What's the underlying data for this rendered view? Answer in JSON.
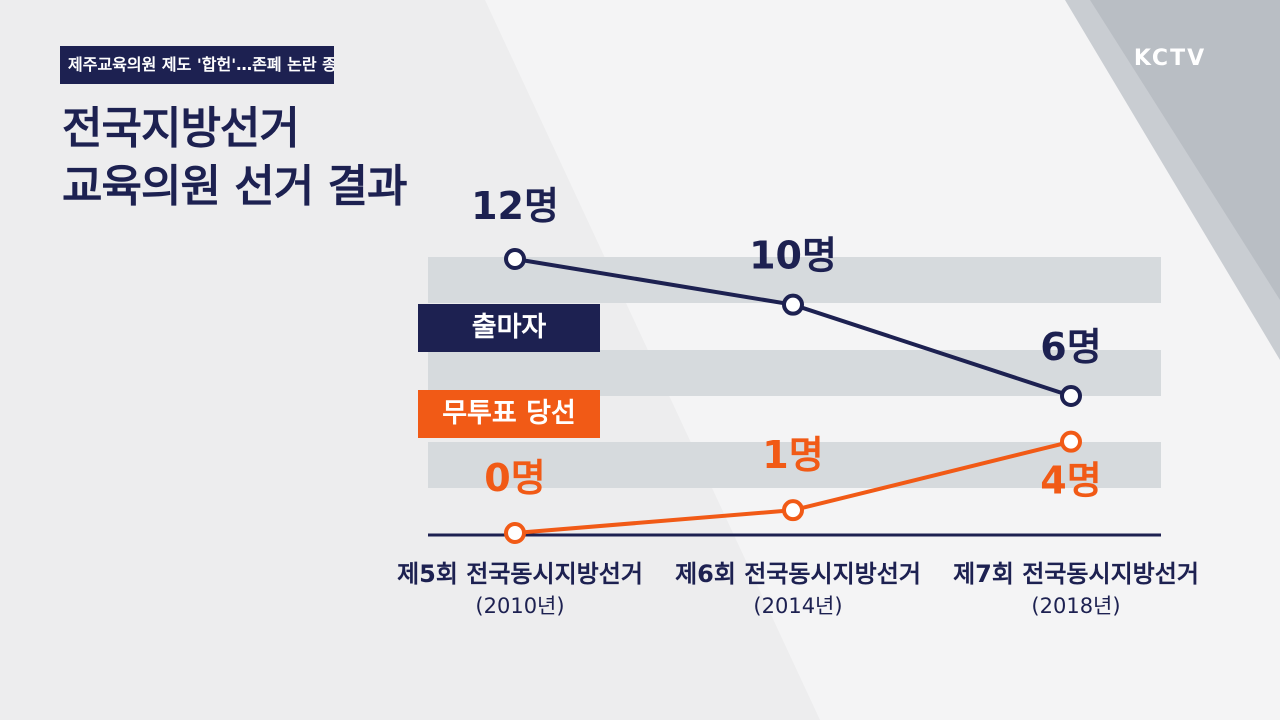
{
  "headline": "제주교육의원 제도 '합헌'…존폐 논란 종지부?",
  "logo": "KCTV",
  "title_lines": [
    "전국지방선거",
    "교육의원 선거 결과"
  ],
  "colors": {
    "navy": "#1d2151",
    "orange": "#f15a16",
    "band": "#d6dadd",
    "axis": "#1d2151"
  },
  "chart_data": {
    "type": "line",
    "categories": [
      {
        "line1": "제5회 전국동시지방선거",
        "line2": "(2010년)"
      },
      {
        "line1": "제6회 전국동시지방선거",
        "line2": "(2014년)"
      },
      {
        "line1": "제7회 전국동시지방선거",
        "line2": "(2018년)"
      }
    ],
    "ylim": [
      0,
      12
    ],
    "series": [
      {
        "name": "출마자",
        "values": [
          12,
          10,
          6
        ],
        "labels": [
          "12명",
          "10명",
          "6명"
        ],
        "color": "#1d2151"
      },
      {
        "name": "무투표 당선",
        "values": [
          0,
          1,
          4
        ],
        "labels": [
          "0명",
          "1명",
          "4명"
        ],
        "color": "#f15a16"
      }
    ],
    "grid": true
  }
}
